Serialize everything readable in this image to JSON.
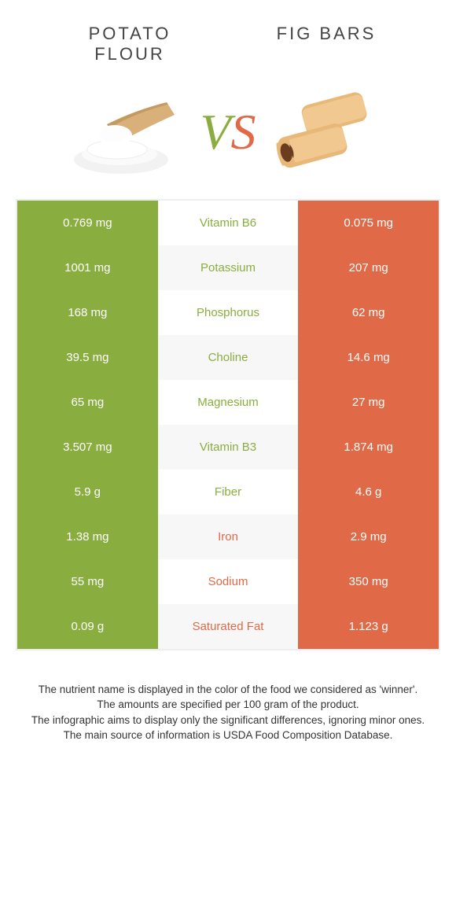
{
  "colors": {
    "green": "#8aad3f",
    "orange": "#e06a47",
    "bg": "#ffffff",
    "text": "#333333"
  },
  "header": {
    "left_title": "POTATO\nFLOUR",
    "right_title": "FIG BARS",
    "vs_v": "V",
    "vs_s": "S"
  },
  "table": {
    "rows": [
      {
        "left": "0.769 mg",
        "label": "Vitamin B6",
        "right": "0.075 mg",
        "winner": "green"
      },
      {
        "left": "1001 mg",
        "label": "Potassium",
        "right": "207 mg",
        "winner": "green"
      },
      {
        "left": "168 mg",
        "label": "Phosphorus",
        "right": "62 mg",
        "winner": "green"
      },
      {
        "left": "39.5 mg",
        "label": "Choline",
        "right": "14.6 mg",
        "winner": "green"
      },
      {
        "left": "65 mg",
        "label": "Magnesium",
        "right": "27 mg",
        "winner": "green"
      },
      {
        "left": "3.507 mg",
        "label": "Vitamin B3",
        "right": "1.874 mg",
        "winner": "green"
      },
      {
        "left": "5.9 g",
        "label": "Fiber",
        "right": "4.6 g",
        "winner": "green"
      },
      {
        "left": "1.38 mg",
        "label": "Iron",
        "right": "2.9 mg",
        "winner": "orange"
      },
      {
        "left": "55 mg",
        "label": "Sodium",
        "right": "350 mg",
        "winner": "orange"
      },
      {
        "left": "0.09 g",
        "label": "Saturated Fat",
        "right": "1.123 g",
        "winner": "orange"
      }
    ]
  },
  "footer": {
    "line1": "The nutrient name is displayed in the color of the food we considered as 'winner'.",
    "line2": "The amounts are specified per 100 gram of the product.",
    "line3": "The infographic aims to display only the significant differences, ignoring minor ones.",
    "line4": "The main source of information is USDA Food Composition Database."
  }
}
